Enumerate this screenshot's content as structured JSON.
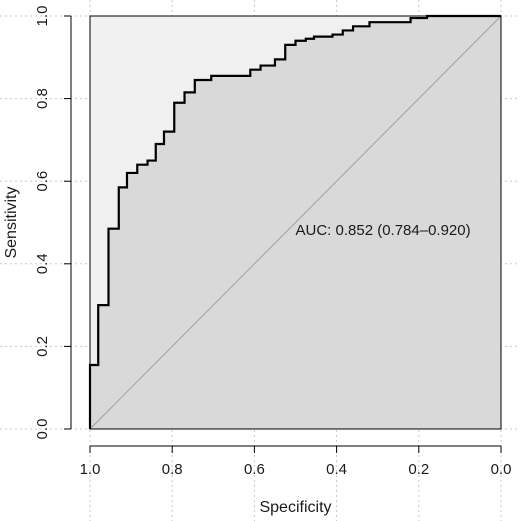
{
  "chart_data": {
    "type": "line",
    "title": "",
    "xlabel": "Specificity",
    "ylabel": "Sensitivity",
    "x_reversed": true,
    "xlim": [
      1.0,
      0.0
    ],
    "ylim": [
      0.0,
      1.0
    ],
    "x_ticks": [
      "1.0",
      "0.8",
      "0.6",
      "0.4",
      "0.2",
      "0.0"
    ],
    "y_ticks": [
      "0.0",
      "0.2",
      "0.4",
      "0.6",
      "0.8",
      "1.0"
    ],
    "grid": true,
    "annotation": "AUC: 0.852 (0.784–0.920)",
    "colors": {
      "curve": "#000000",
      "auc_fill": "#d9d9d9",
      "ci_fill": "#f0f0f0",
      "diagonal": "#a0a0a0",
      "grid": "#c8c8c8"
    },
    "series": [
      {
        "specificity": [
          1.0,
          1.0,
          0.98,
          0.98,
          0.955,
          0.955,
          0.93,
          0.93,
          0.91,
          0.91,
          0.885,
          0.885,
          0.86,
          0.86,
          0.84,
          0.84,
          0.82,
          0.82,
          0.795,
          0.795,
          0.77,
          0.77,
          0.745,
          0.745,
          0.705,
          0.705,
          0.68,
          0.68,
          0.61,
          0.61,
          0.585,
          0.585,
          0.55,
          0.55,
          0.525,
          0.525,
          0.5,
          0.5,
          0.475,
          0.475,
          0.455,
          0.455,
          0.41,
          0.41,
          0.385,
          0.385,
          0.36,
          0.36,
          0.32,
          0.32,
          0.22,
          0.22,
          0.18,
          0.18,
          0.0
        ],
        "sensitivity": [
          0.0,
          0.155,
          0.155,
          0.3,
          0.3,
          0.485,
          0.485,
          0.585,
          0.585,
          0.62,
          0.62,
          0.64,
          0.64,
          0.65,
          0.65,
          0.69,
          0.69,
          0.72,
          0.72,
          0.79,
          0.79,
          0.815,
          0.815,
          0.845,
          0.845,
          0.855,
          0.855,
          0.855,
          0.855,
          0.87,
          0.87,
          0.88,
          0.88,
          0.895,
          0.895,
          0.93,
          0.93,
          0.94,
          0.94,
          0.945,
          0.945,
          0.95,
          0.95,
          0.955,
          0.955,
          0.965,
          0.965,
          0.975,
          0.975,
          0.985,
          0.985,
          0.995,
          0.995,
          1.0,
          1.0
        ]
      }
    ]
  }
}
